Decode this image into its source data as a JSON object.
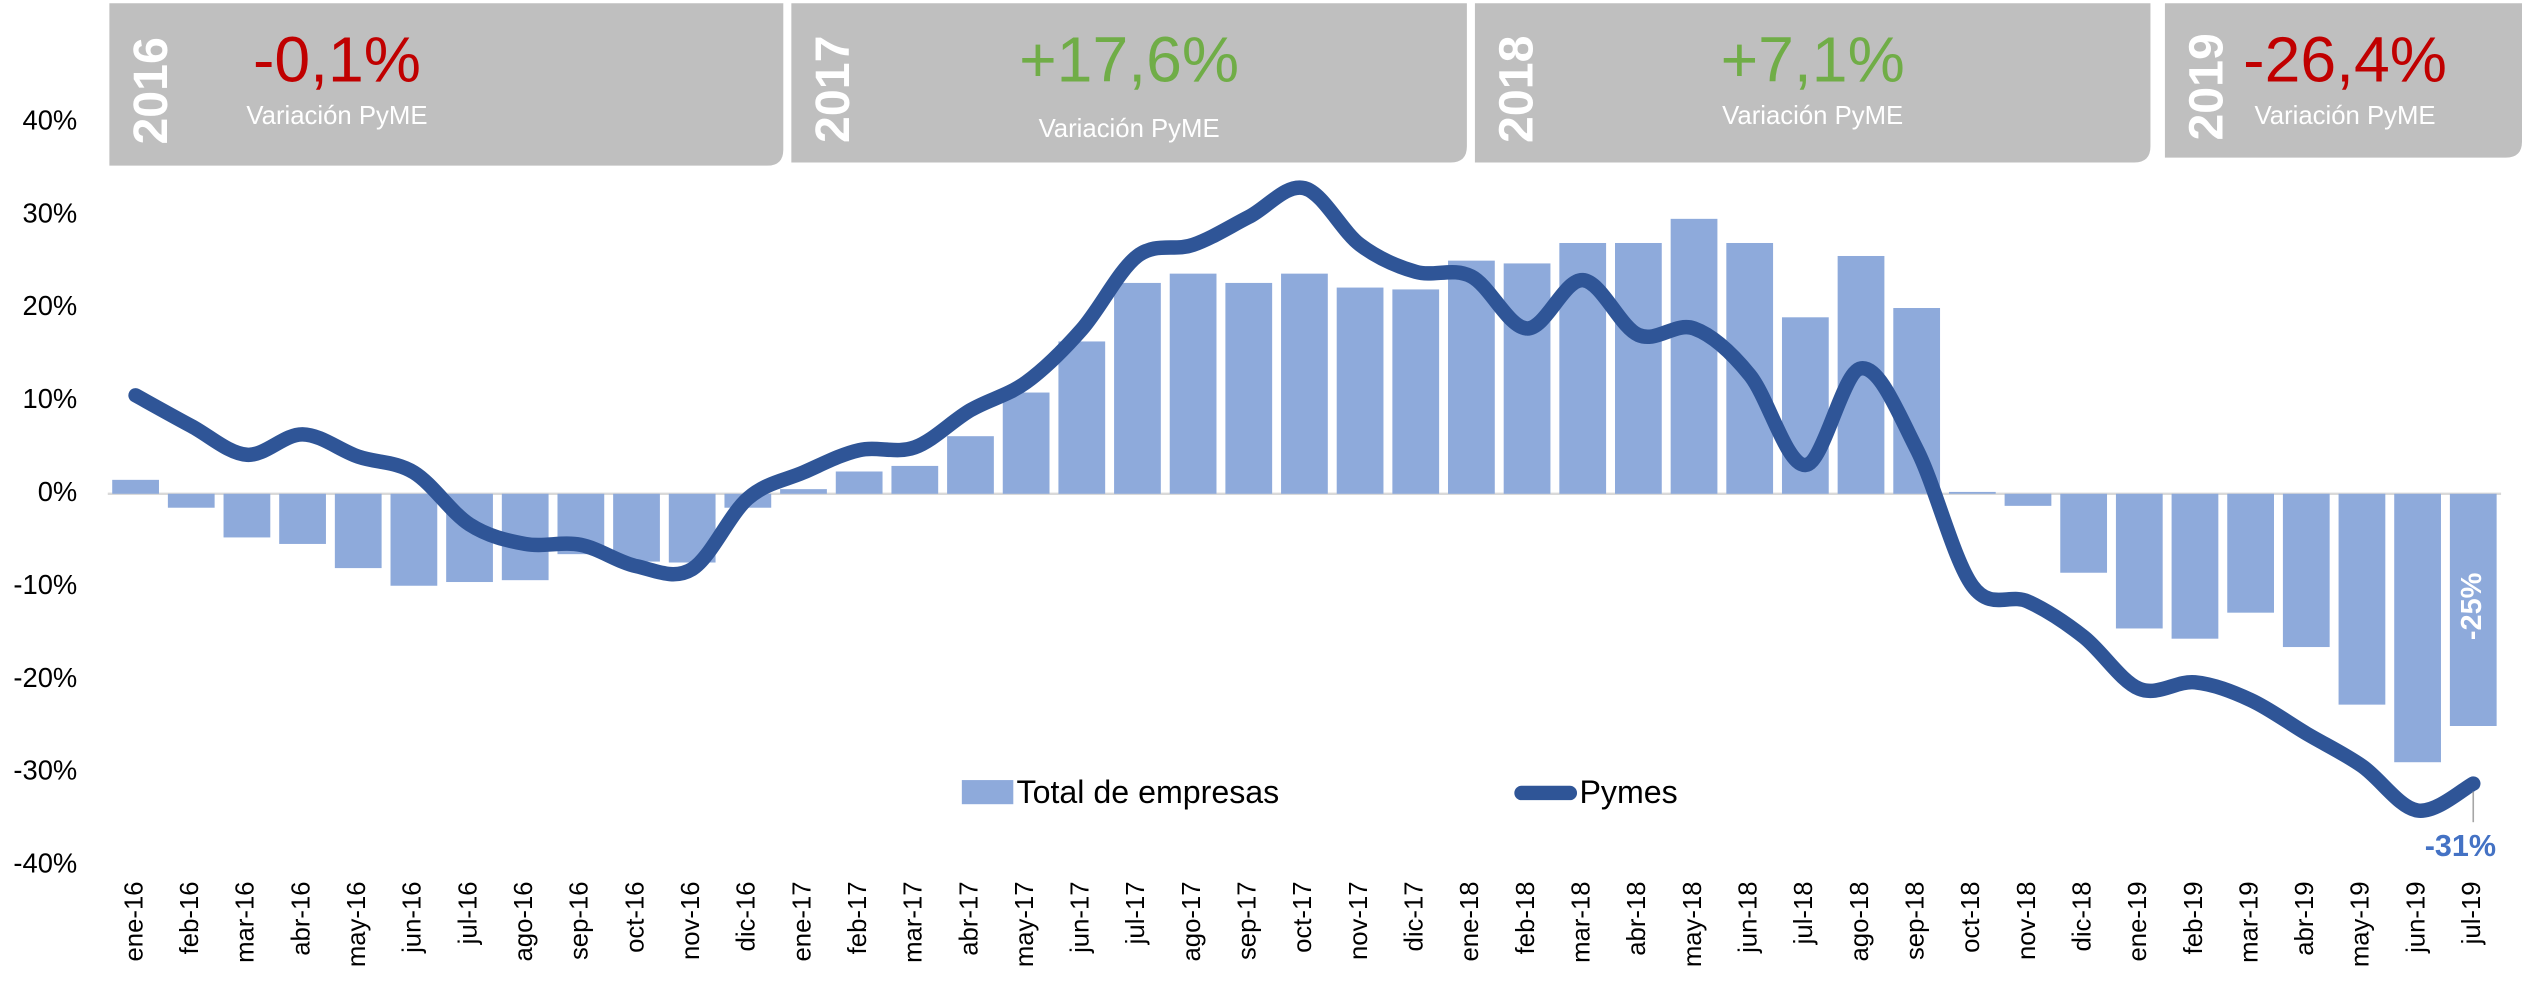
{
  "chart_data": {
    "type": "bar_line",
    "panels": [
      {
        "year": "2016",
        "change": "-0,1%",
        "subtitle": "Variación PyME",
        "color": "#c00000"
      },
      {
        "year": "2017",
        "change": "+17,6%",
        "subtitle": "Variación PyME",
        "color": "#70ad47"
      },
      {
        "year": "2018",
        "change": "+7,1%",
        "subtitle": "Variación PyME",
        "color": "#70ad47"
      },
      {
        "year": "2019",
        "change": "-26,4%",
        "subtitle": "Variación PyME",
        "color": "#c00000"
      }
    ],
    "categories": [
      "ene-16",
      "feb-16",
      "mar-16",
      "abr-16",
      "may-16",
      "jun-16",
      "jul-16",
      "ago-16",
      "sep-16",
      "oct-16",
      "nov-16",
      "dic-16",
      "ene-17",
      "feb-17",
      "mar-17",
      "abr-17",
      "may-17",
      "jun-17",
      "jul-17",
      "ago-17",
      "sep-17",
      "oct-17",
      "nov-17",
      "dic-17",
      "ene-18",
      "feb-18",
      "mar-18",
      "abr-18",
      "may-18",
      "jun-18",
      "jul-18",
      "ago-18",
      "sep-18",
      "oct-18",
      "nov-18",
      "dic-18",
      "ene-19",
      "feb-19",
      "mar-19",
      "abr-19",
      "may-19",
      "jun-19",
      "jul-19"
    ],
    "series": [
      {
        "name": "Total de empresas",
        "type": "bar",
        "color": "#8eaadb",
        "values": [
          1.5,
          -1.5,
          -4.7,
          -5.4,
          -8,
          -9.9,
          -9.5,
          -9.3,
          -6.5,
          -7.3,
          -7.4,
          -1.5,
          0.5,
          2.4,
          3,
          6.2,
          10.9,
          16.4,
          22.7,
          23.7,
          22.7,
          23.7,
          22.2,
          22,
          25.1,
          24.8,
          27,
          27,
          29.6,
          27,
          19,
          25.6,
          20,
          0.2,
          -1.3,
          -8.5,
          -14.5,
          -15.6,
          -12.8,
          -16.5,
          -22.7,
          -28.9,
          -25
        ],
        "value_labels": [
          null,
          null,
          null,
          null,
          null,
          null,
          null,
          null,
          null,
          null,
          null,
          null,
          null,
          null,
          null,
          null,
          null,
          null,
          null,
          null,
          null,
          null,
          null,
          null,
          null,
          null,
          null,
          null,
          null,
          null,
          null,
          null,
          null,
          null,
          null,
          null,
          null,
          null,
          null,
          null,
          null,
          null,
          "-25%"
        ]
      },
      {
        "name": "Pymes",
        "type": "line",
        "color": "#2f5597",
        "values": [
          10.6,
          7.3,
          4.2,
          6.4,
          4,
          2.3,
          -3.3,
          -5.4,
          -5.5,
          -7.8,
          -8.1,
          -0.5,
          2.3,
          4.7,
          5,
          9,
          12,
          17.7,
          25.6,
          26.8,
          29.8,
          32.9,
          26.8,
          23.9,
          23.4,
          17.8,
          23,
          17.1,
          17.8,
          12.8,
          3.1,
          13.5,
          4.8,
          -9.9,
          -11.6,
          -15.4,
          -21,
          -20.3,
          -22.2,
          -25.8,
          -29.3,
          -34.1,
          -31.2
        ],
        "value_labels": [
          null,
          null,
          null,
          null,
          null,
          null,
          null,
          null,
          null,
          null,
          null,
          null,
          null,
          null,
          null,
          null,
          null,
          null,
          null,
          null,
          null,
          null,
          null,
          null,
          null,
          null,
          null,
          null,
          null,
          null,
          null,
          null,
          null,
          null,
          null,
          null,
          null,
          null,
          null,
          null,
          null,
          null,
          "-31%"
        ]
      }
    ],
    "ylim": [
      -40,
      40
    ],
    "yticks": [
      {
        "value": -40,
        "label": "-40%"
      },
      {
        "value": -30,
        "label": "-30%"
      },
      {
        "value": -20,
        "label": "-20%"
      },
      {
        "value": -10,
        "label": "-10%"
      },
      {
        "value": 0,
        "label": "0%"
      },
      {
        "value": 10,
        "label": "10%"
      },
      {
        "value": 20,
        "label": "20%"
      },
      {
        "value": 30,
        "label": "30%"
      },
      {
        "value": 40,
        "label": "40%"
      }
    ],
    "legend": "bottom-center"
  }
}
